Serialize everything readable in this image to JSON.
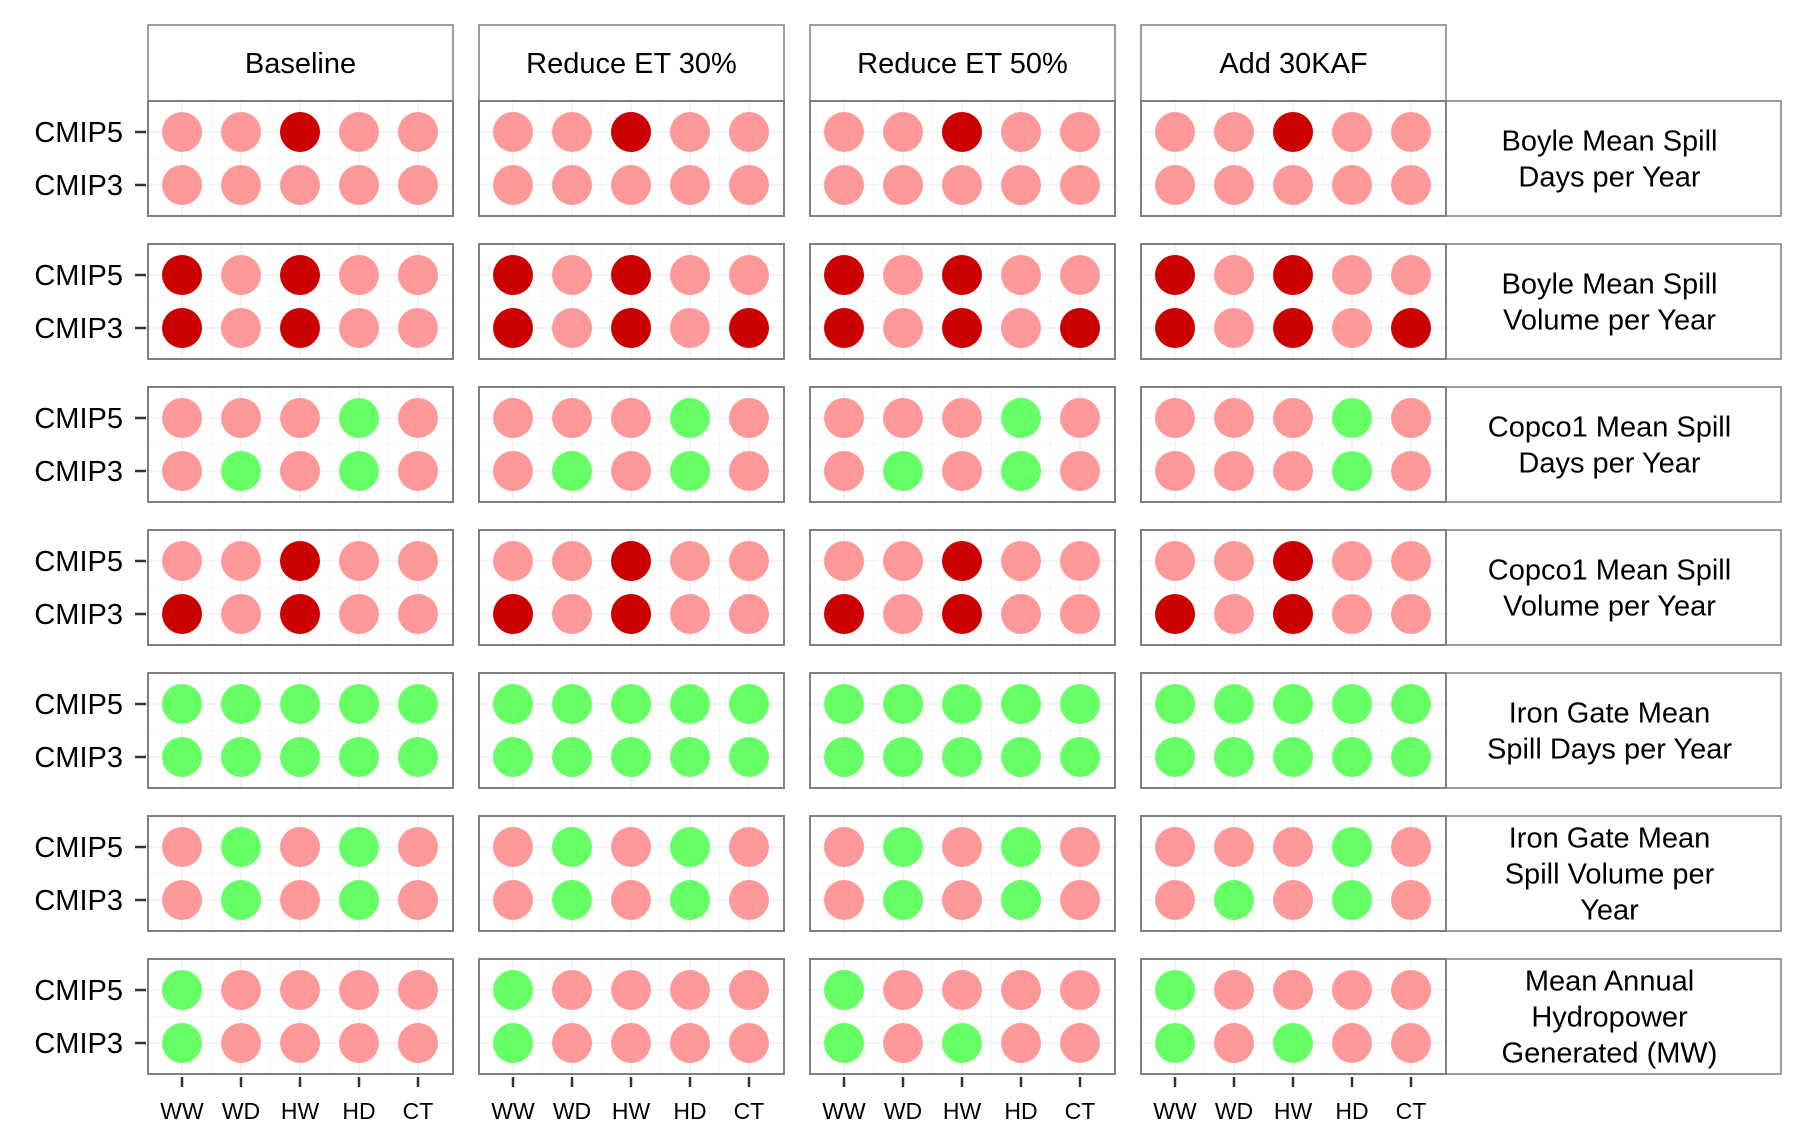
{
  "chart_data": {
    "type": "scatter",
    "title": "",
    "xlabel": "",
    "ylabel": "",
    "grid": true,
    "legend": "none",
    "x": [
      "WW",
      "WD",
      "HW",
      "HD",
      "CT"
    ],
    "y": [
      "CMIP5",
      "CMIP3"
    ],
    "columns": [
      "Baseline",
      "Reduce ET 30%",
      "Reduce ET 50%",
      "Add 30KAF"
    ],
    "rows": [
      "Boyle Mean Spill Days per Year",
      "Boyle Mean Spill Volume per Year",
      "Copco1 Mean Spill Days per Year",
      "Copco1 Mean Spill Volume per Year",
      "Iron Gate Mean Spill Days per Year",
      "Iron Gate Mean Spill Volume per Year",
      "Mean Annual Hydropower Generated (MW)"
    ],
    "row_label_lines": [
      [
        "Boyle Mean Spill",
        "Days per Year"
      ],
      [
        "Boyle Mean Spill",
        "Volume per Year"
      ],
      [
        "Copco1 Mean Spill",
        "Days per Year"
      ],
      [
        "Copco1 Mean Spill",
        "Volume per Year"
      ],
      [
        "Iron Gate Mean",
        "Spill Days per Year"
      ],
      [
        "Iron Gate Mean",
        "Spill Volume per",
        "Year"
      ],
      [
        "Mean Annual",
        "Hydropower",
        "Generated (MW)"
      ]
    ],
    "colors": {
      "L": "#ff9999",
      "D": "#cc0000",
      "G": "#66ff66"
    },
    "cells": [
      [
        [
          [
            "L",
            "L",
            "D",
            "L",
            "L"
          ],
          [
            "L",
            "L",
            "L",
            "L",
            "L"
          ]
        ],
        [
          [
            "L",
            "L",
            "D",
            "L",
            "L"
          ],
          [
            "L",
            "L",
            "L",
            "L",
            "L"
          ]
        ],
        [
          [
            "L",
            "L",
            "D",
            "L",
            "L"
          ],
          [
            "L",
            "L",
            "L",
            "L",
            "L"
          ]
        ],
        [
          [
            "L",
            "L",
            "D",
            "L",
            "L"
          ],
          [
            "L",
            "L",
            "L",
            "L",
            "L"
          ]
        ]
      ],
      [
        [
          [
            "D",
            "L",
            "D",
            "L",
            "L"
          ],
          [
            "D",
            "L",
            "D",
            "L",
            "L"
          ]
        ],
        [
          [
            "D",
            "L",
            "D",
            "L",
            "L"
          ],
          [
            "D",
            "L",
            "D",
            "L",
            "D"
          ]
        ],
        [
          [
            "D",
            "L",
            "D",
            "L",
            "L"
          ],
          [
            "D",
            "L",
            "D",
            "L",
            "D"
          ]
        ],
        [
          [
            "D",
            "L",
            "D",
            "L",
            "L"
          ],
          [
            "D",
            "L",
            "D",
            "L",
            "D"
          ]
        ]
      ],
      [
        [
          [
            "L",
            "L",
            "L",
            "G",
            "L"
          ],
          [
            "L",
            "G",
            "L",
            "G",
            "L"
          ]
        ],
        [
          [
            "L",
            "L",
            "L",
            "G",
            "L"
          ],
          [
            "L",
            "G",
            "L",
            "G",
            "L"
          ]
        ],
        [
          [
            "L",
            "L",
            "L",
            "G",
            "L"
          ],
          [
            "L",
            "G",
            "L",
            "G",
            "L"
          ]
        ],
        [
          [
            "L",
            "L",
            "L",
            "G",
            "L"
          ],
          [
            "L",
            "L",
            "L",
            "G",
            "L"
          ]
        ]
      ],
      [
        [
          [
            "L",
            "L",
            "D",
            "L",
            "L"
          ],
          [
            "D",
            "L",
            "D",
            "L",
            "L"
          ]
        ],
        [
          [
            "L",
            "L",
            "D",
            "L",
            "L"
          ],
          [
            "D",
            "L",
            "D",
            "L",
            "L"
          ]
        ],
        [
          [
            "L",
            "L",
            "D",
            "L",
            "L"
          ],
          [
            "D",
            "L",
            "D",
            "L",
            "L"
          ]
        ],
        [
          [
            "L",
            "L",
            "D",
            "L",
            "L"
          ],
          [
            "D",
            "L",
            "D",
            "L",
            "L"
          ]
        ]
      ],
      [
        [
          [
            "G",
            "G",
            "G",
            "G",
            "G"
          ],
          [
            "G",
            "G",
            "G",
            "G",
            "G"
          ]
        ],
        [
          [
            "G",
            "G",
            "G",
            "G",
            "G"
          ],
          [
            "G",
            "G",
            "G",
            "G",
            "G"
          ]
        ],
        [
          [
            "G",
            "G",
            "G",
            "G",
            "G"
          ],
          [
            "G",
            "G",
            "G",
            "G",
            "G"
          ]
        ],
        [
          [
            "G",
            "G",
            "G",
            "G",
            "G"
          ],
          [
            "G",
            "G",
            "G",
            "G",
            "G"
          ]
        ]
      ],
      [
        [
          [
            "L",
            "G",
            "L",
            "G",
            "L"
          ],
          [
            "L",
            "G",
            "L",
            "G",
            "L"
          ]
        ],
        [
          [
            "L",
            "G",
            "L",
            "G",
            "L"
          ],
          [
            "L",
            "G",
            "L",
            "G",
            "L"
          ]
        ],
        [
          [
            "L",
            "G",
            "L",
            "G",
            "L"
          ],
          [
            "L",
            "G",
            "L",
            "G",
            "L"
          ]
        ],
        [
          [
            "L",
            "L",
            "L",
            "G",
            "L"
          ],
          [
            "L",
            "G",
            "L",
            "G",
            "L"
          ]
        ]
      ],
      [
        [
          [
            "G",
            "L",
            "L",
            "L",
            "L"
          ],
          [
            "G",
            "L",
            "L",
            "L",
            "L"
          ]
        ],
        [
          [
            "G",
            "L",
            "L",
            "L",
            "L"
          ],
          [
            "G",
            "L",
            "L",
            "L",
            "L"
          ]
        ],
        [
          [
            "G",
            "L",
            "L",
            "L",
            "L"
          ],
          [
            "G",
            "L",
            "G",
            "L",
            "L"
          ]
        ],
        [
          [
            "G",
            "L",
            "L",
            "L",
            "L"
          ],
          [
            "G",
            "L",
            "G",
            "L",
            "L"
          ]
        ]
      ]
    ]
  }
}
